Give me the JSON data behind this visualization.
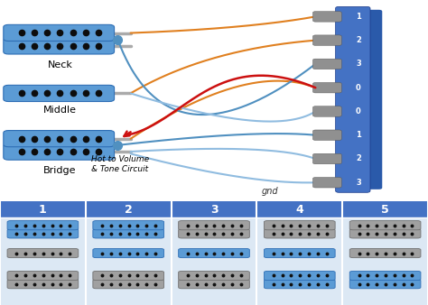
{
  "bg_color": "#ffffff",
  "top_bg": "#ffffff",
  "bottom_bg": "#dce8f4",
  "header_bg": "#4472c4",
  "header_text": "#ffffff",
  "header_labels": [
    "1",
    "2",
    "3",
    "4",
    "5"
  ],
  "pickup_blue": "#5b9bd5",
  "pickup_dark_blue": "#2e6eb5",
  "pickup_gray": "#a0a0a0",
  "pickup_dark_gray": "#707070",
  "switch_blue": "#4472c4",
  "switch_blue_light": "#6fa0e0",
  "connector_gray": "#909090",
  "dot_color": "#111111",
  "wire_orange": "#e08020",
  "wire_blue": "#5090c0",
  "wire_blue_light": "#90bce0",
  "wire_red": "#cc1010",
  "neck_label": "Neck",
  "middle_label": "Middle",
  "bridge_label": "Bridge",
  "hot_label": "Hot to Volume\n& Tone Circuit",
  "gnd_label": "gnd",
  "switch_numbers": [
    "1",
    "2",
    "3",
    "0",
    "0",
    "1",
    "2",
    "3"
  ],
  "table_active": [
    [
      1,
      1,
      0,
      0,
      0
    ],
    [
      0,
      1,
      1,
      1,
      0
    ],
    [
      0,
      0,
      0,
      1,
      1
    ]
  ]
}
